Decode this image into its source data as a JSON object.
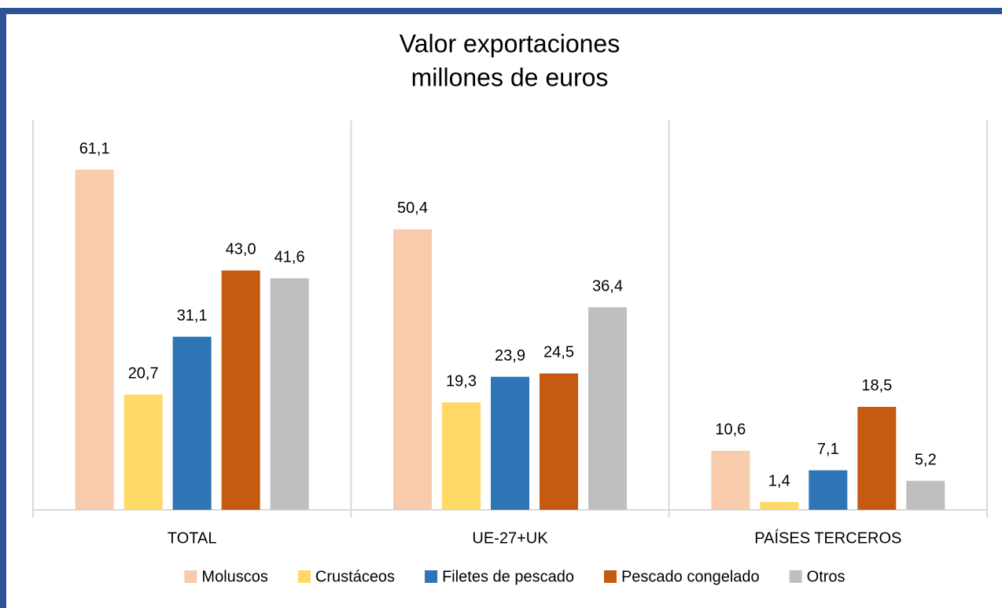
{
  "chart_data": {
    "type": "bar",
    "title": [
      "Valor exportaciones",
      "millones de euros"
    ],
    "categories": [
      "TOTAL",
      "UE-27+UK",
      "PAÍSES TERCEROS"
    ],
    "series": [
      {
        "name": "Moluscos",
        "color": "#f8cbad",
        "values": [
          61.1,
          50.4,
          10.6
        ],
        "value_labels": [
          "61,1",
          "50,4",
          "10,6"
        ]
      },
      {
        "name": "Crustáceos",
        "color": "#ffd966",
        "values": [
          20.7,
          19.3,
          1.4
        ],
        "value_labels": [
          "20,7",
          "19,3",
          "1,4"
        ]
      },
      {
        "name": "Filetes de pescado",
        "color": "#2e75b6",
        "values": [
          31.1,
          23.9,
          7.1
        ],
        "value_labels": [
          "31,1",
          "23,9",
          "7,1"
        ]
      },
      {
        "name": "Pescado congelado",
        "color": "#c55a11",
        "values": [
          43.0,
          24.5,
          18.5
        ],
        "value_labels": [
          "43,0",
          "24,5",
          "18,5"
        ]
      },
      {
        "name": "Otros",
        "color": "#bfbfbf",
        "values": [
          41.6,
          36.4,
          5.2
        ],
        "value_labels": [
          "41,6",
          "36,4",
          "5,2"
        ]
      }
    ],
    "ylim": [
      0,
      70
    ],
    "legend": "bottom"
  }
}
